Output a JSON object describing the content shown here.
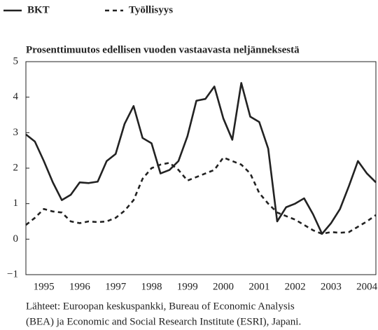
{
  "chart_data": {
    "type": "line",
    "subtitle": "Prosenttimuutos edellisen vuoden vastaavasta neljänneksestä",
    "source": [
      "Lähteet: Euroopan keskuspankki, Bureau of Economic Analysis",
      "(BEA) ja Economic and Social Research Institute (ESRI), Japani."
    ],
    "x": [
      1995,
      1995.25,
      1995.5,
      1995.75,
      1996,
      1996.25,
      1996.5,
      1996.75,
      1997,
      1997.25,
      1997.5,
      1997.75,
      1998,
      1998.25,
      1998.5,
      1998.75,
      1999,
      1999.25,
      1999.5,
      1999.75,
      2000,
      2000.25,
      2000.5,
      2000.75,
      2001,
      2001.25,
      2001.5,
      2001.75,
      2002,
      2002.25,
      2002.5,
      2002.75,
      2003,
      2003.25,
      2003.5,
      2003.75,
      2004,
      2004.25,
      2004.5,
      2004.75
    ],
    "series": [
      {
        "name": "BKT",
        "color": "#222222",
        "dash": false,
        "values": [
          2.95,
          2.75,
          2.2,
          1.6,
          1.1,
          1.25,
          1.6,
          1.58,
          1.62,
          2.2,
          2.4,
          3.25,
          3.75,
          2.85,
          2.7,
          1.85,
          1.95,
          2.2,
          2.9,
          3.9,
          3.95,
          4.3,
          3.4,
          2.8,
          4.4,
          3.45,
          3.3,
          2.55,
          0.5,
          0.9,
          1.0,
          1.15,
          0.7,
          0.15,
          0.45,
          0.85,
          1.5,
          2.2,
          1.85,
          1.6
        ]
      },
      {
        "name": "Työllisyys",
        "color": "#222222",
        "dash": true,
        "values": [
          0.4,
          0.6,
          0.85,
          0.78,
          0.75,
          0.5,
          0.45,
          0.5,
          0.48,
          0.5,
          0.6,
          0.8,
          1.1,
          1.7,
          2.0,
          2.1,
          2.15,
          1.95,
          1.65,
          1.75,
          1.85,
          1.95,
          2.3,
          2.2,
          2.1,
          1.85,
          1.3,
          1.0,
          0.75,
          0.65,
          0.55,
          0.4,
          0.25,
          0.15,
          0.2,
          0.18,
          0.2,
          0.35,
          0.5,
          0.68
        ]
      }
    ],
    "xlim": [
      1995,
      2004.75
    ],
    "xticks": [
      {
        "value": 1995.5,
        "label": "1995"
      },
      {
        "value": 1996.5,
        "label": "1996"
      },
      {
        "value": 1997.5,
        "label": "1997"
      },
      {
        "value": 1998.5,
        "label": "1998"
      },
      {
        "value": 1999.5,
        "label": "1999"
      },
      {
        "value": 2000.5,
        "label": "2000"
      },
      {
        "value": 2001.5,
        "label": "2001"
      },
      {
        "value": 2002.5,
        "label": "2002"
      },
      {
        "value": 2003.5,
        "label": "2003"
      },
      {
        "value": 2004.5,
        "label": "2004"
      }
    ],
    "ylim": [
      -1,
      5
    ],
    "yticks": [
      {
        "value": -1,
        "label": "−1"
      },
      0,
      1,
      2,
      3,
      4,
      5
    ],
    "grid": false
  }
}
